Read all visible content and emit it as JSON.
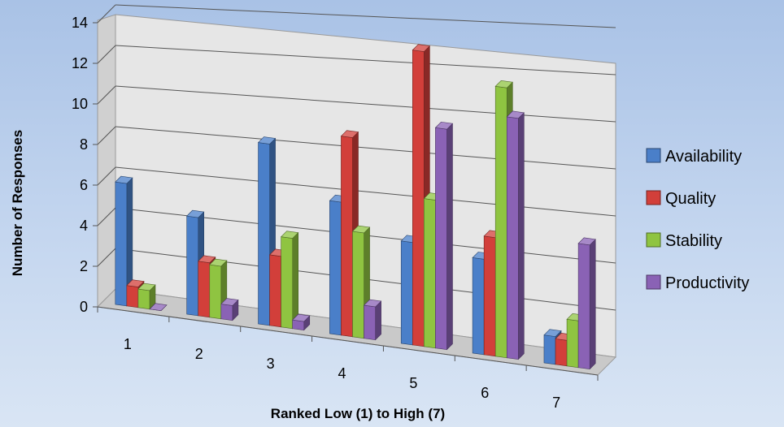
{
  "chart_data": {
    "type": "bar",
    "title": "",
    "xlabel": "Ranked Low (1) to High (7)",
    "ylabel": "Number of Responses",
    "categories": [
      "1",
      "2",
      "3",
      "4",
      "5",
      "6",
      "7"
    ],
    "ylim": [
      0,
      14
    ],
    "yticks": [
      "0",
      "2",
      "4",
      "6",
      "8",
      "10",
      "12",
      "14"
    ],
    "grid": true,
    "legend": "right",
    "series": [
      {
        "name": "Availability",
        "color": "#4a7fc9",
        "values": [
          6,
          4.7,
          8.5,
          6.1,
          4.6,
          4.2,
          1.2
        ]
      },
      {
        "name": "Quality",
        "color": "#d23f3a",
        "values": [
          1,
          2.6,
          3.3,
          9.1,
          13.2,
          5.2,
          1.1
        ]
      },
      {
        "name": "Stability",
        "color": "#8fc441",
        "values": [
          0.9,
          2.5,
          4.2,
          4.8,
          6.6,
          11.8,
          2.0
        ]
      },
      {
        "name": "Productivity",
        "color": "#8a62b5",
        "values": [
          0,
          0.7,
          0.4,
          1.5,
          9.8,
          10.5,
          5.3
        ]
      }
    ]
  }
}
